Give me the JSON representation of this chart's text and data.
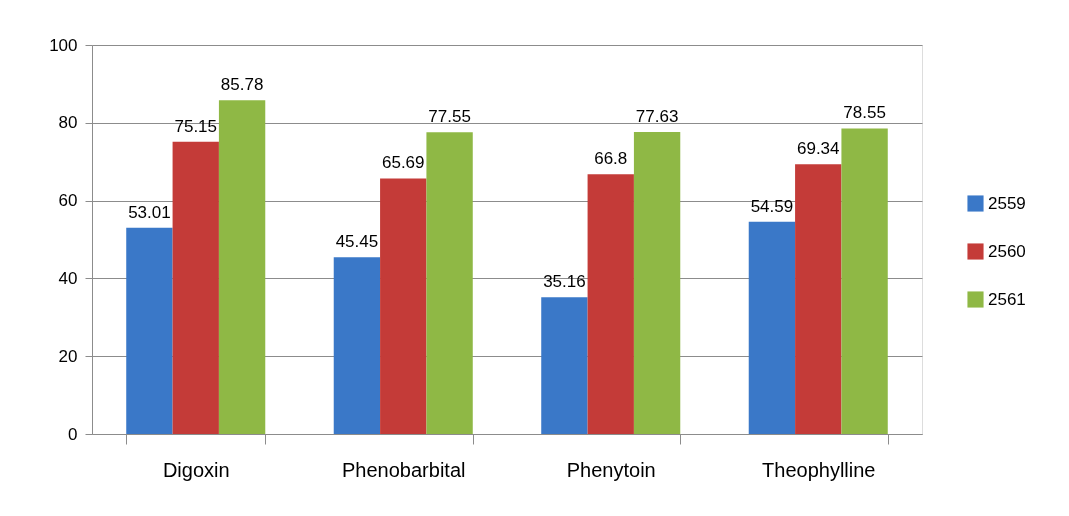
{
  "chart_data": {
    "type": "bar",
    "categories": [
      "Digoxin",
      "Phenobarbital",
      "Phenytoin",
      "Theophylline"
    ],
    "series": [
      {
        "name": "2559",
        "color": "#3a78c8",
        "values": [
          53.01,
          45.45,
          35.16,
          54.59
        ]
      },
      {
        "name": "2560",
        "color": "#c43b38",
        "values": [
          75.15,
          65.69,
          66.8,
          69.34
        ]
      },
      {
        "name": "2561",
        "color": "#8fb845",
        "values": [
          85.78,
          77.55,
          77.63,
          78.55
        ]
      }
    ],
    "ylim": [
      0,
      100
    ],
    "yticks": [
      0,
      20,
      40,
      60,
      80,
      100
    ],
    "grid": "y",
    "legend": "right",
    "data_labels": true
  }
}
